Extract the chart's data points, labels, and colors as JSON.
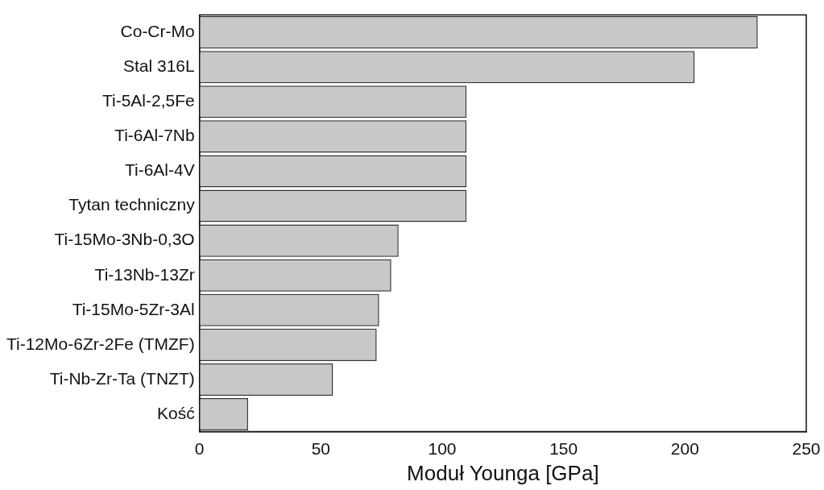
{
  "chart_data": {
    "type": "bar",
    "orientation": "horizontal",
    "xlabel": "Moduł Younga [GPa]",
    "categories": [
      "Co-Cr-Mo",
      "Stal 316L",
      "Ti-5Al-2,5Fe",
      "Ti-6Al-7Nb",
      "Ti-6Al-4V",
      "Tytan techniczny",
      "Ti-15Mo-3Nb-0,3O",
      "Ti-13Nb-13Zr",
      "Ti-15Mo-5Zr-3Al",
      "Ti-12Mo-6Zr-2Fe (TMZF)",
      "Ti-Nb-Zr-Ta (TNZT)",
      "Kość"
    ],
    "values": [
      230,
      204,
      110,
      110,
      110,
      110,
      82,
      79,
      74,
      73,
      55,
      20
    ],
    "color": "#c8c8c8",
    "xlim": [
      0,
      250
    ],
    "xticks": [
      0,
      50,
      100,
      150,
      200,
      250
    ],
    "grid": false,
    "legend": false
  }
}
